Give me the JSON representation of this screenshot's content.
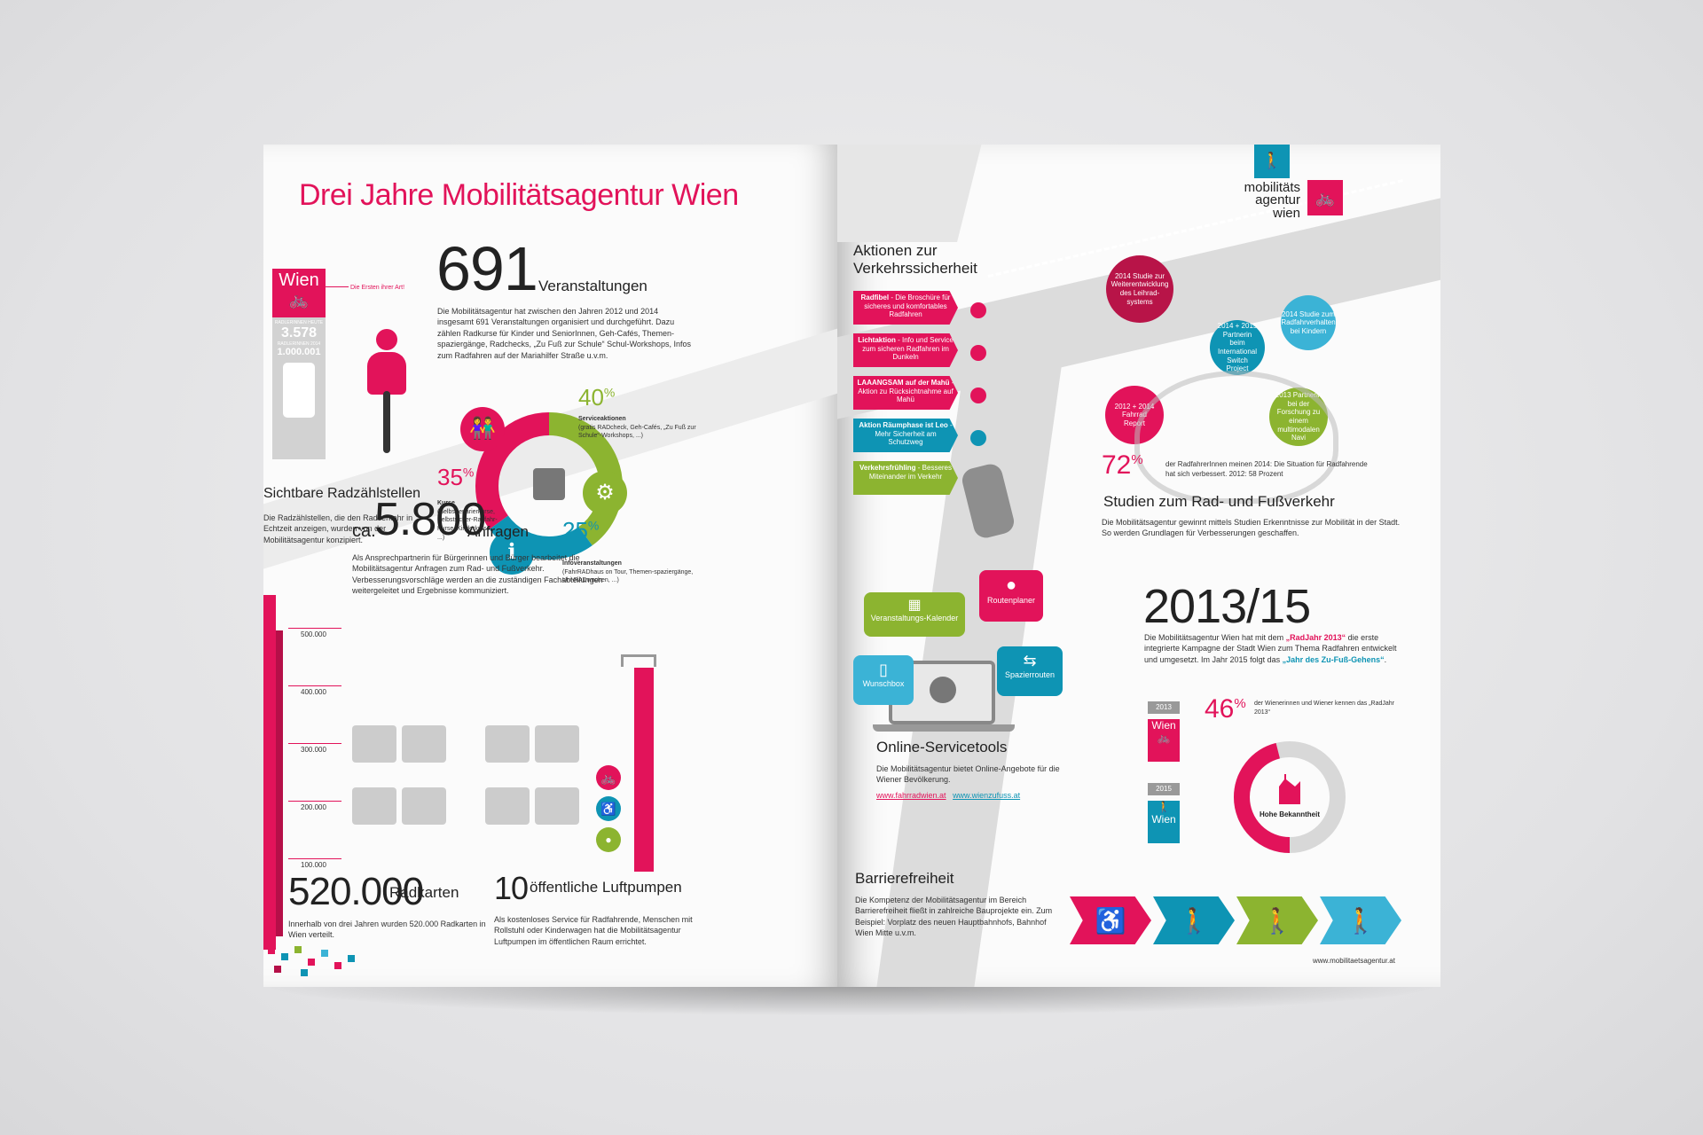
{
  "left": {
    "title": "Drei Jahre Mobilitätsagentur Wien",
    "events": {
      "count": "691",
      "label": "Veranstaltungen",
      "body": "Die Mobilitätsagentur hat zwischen den Jahren 2012 und 2014 insgesamt 691 Veranstaltungen organisiert und durchgeführt. Dazu zählen Radkurse für Kinder und SeniorInnen, Geh-Cafés, Themen-spaziergänge, Radchecks, „Zu Fuß zur Schule“ Schul-Workshops, Infos zum Radfahren auf der Mariahilfer Straße u.v.m."
    },
    "counter": {
      "city": "Wien",
      "tag": "Die Ersten ihrer Art!",
      "small1": "RADLERINNEN HEUTE",
      "value1": "3.578",
      "small2": "RADLERINNEN 2014",
      "value2": "1.000.001",
      "heading": "Sichtbare Radzählstellen",
      "body": "Die Radzählstellen, die den Radverkehr in Echtzeit anzeigen, wurden von der Mobilitätsagentur konzipiert."
    },
    "donut": {
      "segments": [
        {
          "pct": "40",
          "title": "Serviceaktionen",
          "desc": "(gratis RADcheck, Geh-Cafés, „Zu Fuß zur Schule“-Workshops, ...)",
          "color": "#8cb430"
        },
        {
          "pct": "35",
          "title": "Kurse",
          "desc": "(Selbstreparierkurse, Selbstsicher-Radfahr-Kurse, Kinderkurse, ...)",
          "color": "#e2135a"
        },
        {
          "pct": "25",
          "title": "Infoveranstaltungen",
          "desc": "(FahrRADhaus on Tour, Themen-spaziergänge, Uni-RADwochen, ...)",
          "color": "#0e94b4"
        }
      ]
    },
    "inquiries": {
      "prefix": "ca.",
      "count": "5.800",
      "label": "Anfragen",
      "body": "Als Ansprechpartnerin für Bürgerinnen und Bürger bearbeitet die Mobilitätsagentur Anfragen zum Rad- und Fußverkehr. Verbesserungsvorschläge werden an die zuständigen Fachabteilungen weitergeleitet und Ergebnisse kommuniziert."
    },
    "radkarten": {
      "count": "520.000",
      "label": "Radkarten",
      "body": "Innerhalb von drei Jahren wurden 520.000 Radkarten in Wien verteilt.",
      "ticks": [
        "500.000",
        "400.000",
        "300.000",
        "200.000",
        "100.000"
      ]
    },
    "pumps": {
      "count": "10",
      "label": "öffentliche Luftpumpen",
      "body": "Als kostenloses Service für Radfahrende, Menschen mit Rollstuhl oder Kinderwagen hat die Mobilitätsagentur Luftpumpen im öffentlichen Raum errichtet."
    }
  },
  "right": {
    "logo": [
      "mobilitäts",
      "agentur",
      "wien"
    ],
    "safety": {
      "heading": "Aktionen zur Verkehrssicherheit",
      "items": [
        {
          "bold": "Radfibel",
          "text": " - Die Broschüre für sicheres und komfortables Radfahren",
          "color": "#e2135a"
        },
        {
          "bold": "Lichtaktion",
          "text": " - Info und Service zum sicheren Radfahren im Dunkeln",
          "color": "#e2135a"
        },
        {
          "bold": "LAAANGSAM auf der Mahü",
          "text": " - Aktion zu Rücksichtnahme auf Mahü",
          "color": "#e2135a"
        },
        {
          "bold": "Aktion Räumphase ist Leo",
          "text": " - Mehr Sicherheit am Schutzweg",
          "color": "#0e94b4"
        },
        {
          "bold": "Verkehrsfrühling",
          "text": " - Besseres Miteinander im Verkehr",
          "color": "#8cb430"
        }
      ]
    },
    "studies": {
      "circles": [
        {
          "text": "2014 Studie zur Weiterentwicklung des Leihrad-systems",
          "color": "#b81448"
        },
        {
          "text": "2014 Studie zum Radfahrverhalten bei Kindern",
          "color": "#3bb3d6"
        },
        {
          "text": "2014 + 2015 Partnerin beim International Switch Project",
          "color": "#0e94b4"
        },
        {
          "text": "2012 + 2014 Fahrrad Report",
          "color": "#e2135a"
        },
        {
          "text": "2013 Partnerin bei der Forschung zu einem multimodalen Navi",
          "color": "#8cb430"
        }
      ],
      "pct": "72",
      "pct_desc": "der RadfahrerInnen meinen 2014: Die Situation für Radfahrende hat sich verbessert. 2012: 58 Prozent",
      "heading": "Studien zum Rad- und Fußverkehr",
      "body": "Die Mobilitätsagentur gewinnt mittels Studien Erkenntnisse zur Mobilität in der Stadt. So werden Grundlagen für Verbesserungen geschaffen."
    },
    "online": {
      "bubbles": [
        "Veranstaltungs-Kalender",
        "Routenplaner",
        "Wunschbox",
        "Spazierrouten"
      ],
      "heading": "Online-Servicetools",
      "body": "Die Mobilitätsagentur bietet Online-Angebote für die Wiener Bevölkerung.",
      "link1": "www.fahrradwien.at",
      "link2": "www.wienzufuss.at"
    },
    "year": {
      "big": "2013/15",
      "body_a": "Die Mobilitätsagentur Wien hat mit dem ",
      "hl1": "„RadJahr 2013“",
      "body_b": " die erste integrierte Kampagne der Stadt Wien zum Thema Radfahren entwickelt und umgesetzt. Im Jahr 2015 folgt das ",
      "hl2": "„Jahr des Zu-Fuß-Gehens“",
      "body_c": ".",
      "y2013": "2013",
      "y2015": "2015",
      "wien": "Wien",
      "pct": "46",
      "pct_desc": "der Wienerinnen und Wiener kennen das „RadJahr 2013“",
      "donut_label": "Hohe Bekanntheit",
      "donut_value": 0.46
    },
    "barrier": {
      "heading": "Barrierefreiheit",
      "body": "Die Kompetenz der Mobilitätsagentur im Bereich Barrierefreiheit fließt in zahlreiche Bauprojekte ein. Zum Beispiel: Vorplatz des neuen Hauptbahnhofs, Bahnhof Wien Mitte u.v.m.",
      "chevrons": [
        {
          "glyph": "♿",
          "color": "#e2135a"
        },
        {
          "glyph": "🚶",
          "color": "#0e94b4"
        },
        {
          "glyph": "🚶",
          "color": "#8cb430"
        },
        {
          "glyph": "🚶",
          "color": "#3bb3d6"
        }
      ]
    },
    "url": "www.mobilitaetsagentur.at"
  }
}
